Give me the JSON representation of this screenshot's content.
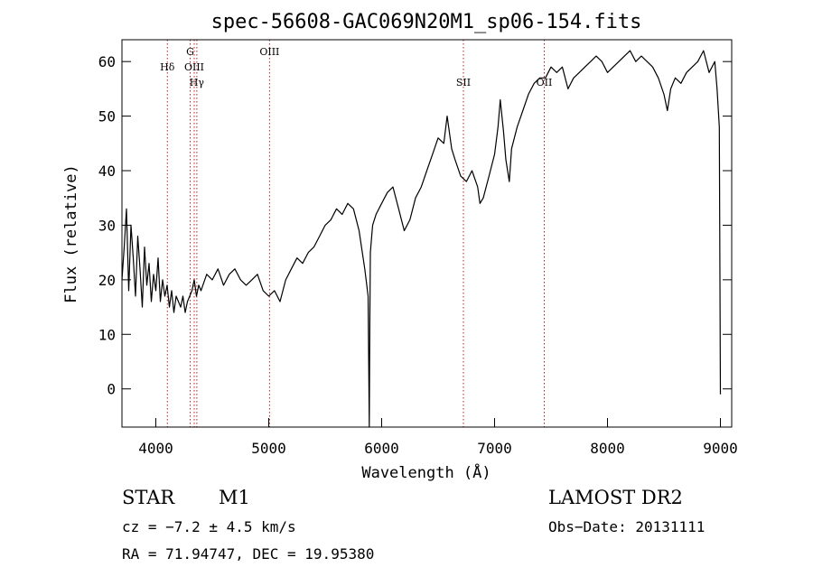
{
  "chart_data": {
    "type": "line",
    "title": "spec-56608-GAC069N20M1_sp06-154.fits",
    "xlabel": "Wavelength (Å)",
    "ylabel": "Flux (relative)",
    "xlim": [
      3700,
      9100
    ],
    "ylim": [
      -7,
      64
    ],
    "xticks": [
      4000,
      5000,
      6000,
      7000,
      8000,
      9000
    ],
    "yticks": [
      0,
      10,
      20,
      30,
      40,
      50,
      60
    ],
    "xtick_labels": [
      "4000",
      "5000",
      "6000",
      "7000",
      "8000",
      "9000"
    ],
    "ytick_labels": [
      "0",
      "10",
      "20",
      "30",
      "40",
      "50",
      "60"
    ],
    "line_color": "#000000",
    "marker_color": "#b22222",
    "grid": false,
    "series": [
      {
        "x": [
          3700,
          3720,
          3740,
          3760,
          3780,
          3800,
          3820,
          3840,
          3860,
          3880,
          3900,
          3920,
          3940,
          3960,
          3980,
          4000,
          4020,
          4040,
          4060,
          4080,
          4100,
          4120,
          4140,
          4160,
          4180,
          4200,
          4220,
          4240,
          4260,
          4280,
          4300,
          4320,
          4340,
          4360,
          4380,
          4400,
          4450,
          4500,
          4550,
          4600,
          4650,
          4700,
          4750,
          4800,
          4850,
          4900,
          4950,
          5000,
          5050,
          5100,
          5150,
          5200,
          5250,
          5300,
          5350,
          5400,
          5450,
          5500,
          5550,
          5600,
          5650,
          5700,
          5750,
          5800,
          5850,
          5880,
          5890,
          5895,
          5900,
          5920,
          5950,
          6000,
          6050,
          6100,
          6150,
          6200,
          6250,
          6300,
          6350,
          6400,
          6450,
          6500,
          6550,
          6580,
          6600,
          6620,
          6650,
          6700,
          6750,
          6800,
          6850,
          6870,
          6900,
          6950,
          7000,
          7030,
          7050,
          7080,
          7100,
          7130,
          7150,
          7200,
          7250,
          7300,
          7350,
          7400,
          7450,
          7500,
          7550,
          7600,
          7650,
          7700,
          7750,
          7800,
          7850,
          7900,
          7950,
          8000,
          8050,
          8100,
          8150,
          8200,
          8250,
          8300,
          8350,
          8400,
          8450,
          8500,
          8530,
          8560,
          8600,
          8650,
          8700,
          8750,
          8800,
          8850,
          8900,
          8950,
          8970,
          8990,
          9000
        ],
        "y": [
          20,
          26,
          33,
          18,
          30,
          24,
          17,
          28,
          22,
          15,
          26,
          19,
          23,
          16,
          21,
          18,
          24,
          16,
          20,
          17,
          19,
          15,
          18,
          14,
          17,
          16,
          15,
          17,
          14,
          16,
          17,
          18,
          20,
          17,
          19,
          18,
          21,
          20,
          22,
          19,
          21,
          22,
          20,
          19,
          20,
          21,
          18,
          17,
          18,
          16,
          20,
          22,
          24,
          23,
          25,
          26,
          28,
          30,
          31,
          33,
          32,
          34,
          33,
          29,
          22,
          17,
          -7,
          12,
          25,
          30,
          32,
          34,
          36,
          37,
          33,
          29,
          31,
          35,
          37,
          40,
          43,
          46,
          45,
          50,
          47,
          44,
          42,
          39,
          38,
          40,
          37,
          34,
          35,
          39,
          43,
          48,
          53,
          47,
          42,
          38,
          44,
          48,
          51,
          54,
          56,
          57,
          57,
          59,
          58,
          59,
          55,
          57,
          58,
          59,
          60,
          61,
          60,
          58,
          59,
          60,
          61,
          62,
          60,
          61,
          60,
          59,
          57,
          54,
          51,
          55,
          57,
          56,
          58,
          59,
          60,
          62,
          58,
          60,
          55,
          48,
          -1
        ]
      }
    ],
    "line_markers": [
      {
        "label": "Hδ",
        "x": 4102,
        "label_row": 1
      },
      {
        "label": "G",
        "x": 4304,
        "label_row": 0
      },
      {
        "label": "OIII",
        "x": 4340,
        "label_row": 1
      },
      {
        "label": "Hγ",
        "x": 4363,
        "label_row": 2
      },
      {
        "label": "OIII",
        "x": 5007,
        "label_row": 0
      },
      {
        "label": "SII",
        "x": 6724,
        "label_row": 2
      },
      {
        "label": "OII",
        "x": 7440,
        "label_row": 2
      }
    ]
  },
  "info": {
    "object_class": "STAR",
    "subclass": "M1",
    "survey": "LAMOST DR2",
    "redshift": "cz = −7.2 ± 4.5 km/s",
    "obs_date": "Obs−Date: 20131111",
    "coordinates": "RA =  71.94747, DEC =  19.95380"
  }
}
